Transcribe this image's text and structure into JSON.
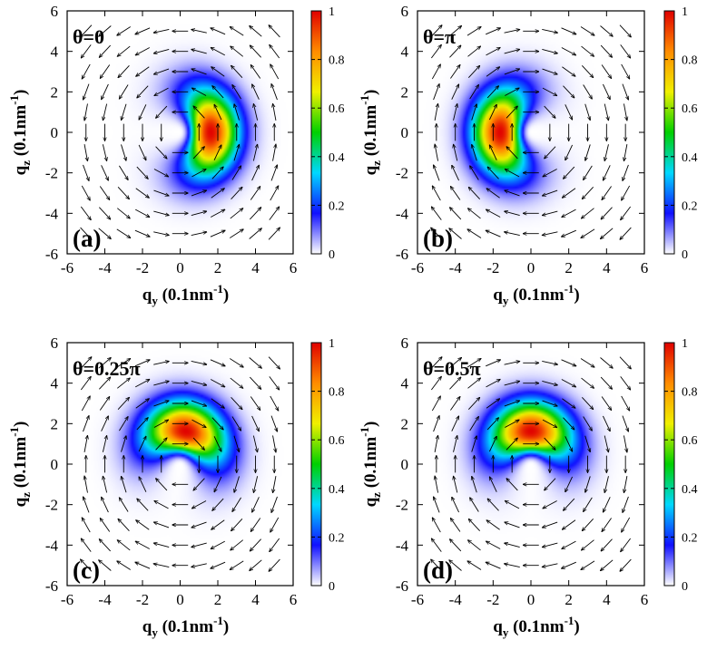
{
  "figure": {
    "chart_data": [
      {
        "type": "heatmap",
        "panel_label": "(a)",
        "theta_label": "θ=0",
        "ylabel": "q_z (0.1nm^-1)",
        "xlabel": "q_y (0.1nm^-1)",
        "xlim": [
          -6,
          6
        ],
        "ylim": [
          -6,
          6
        ],
        "xticks": [
          -6,
          -4,
          -2,
          0,
          2,
          4,
          6
        ],
        "yticks": [
          -6,
          -4,
          -2,
          0,
          2,
          4,
          6
        ],
        "colorbar": {
          "range": [
            0,
            1
          ],
          "ticks": [
            0,
            0.2,
            0.4,
            0.6,
            0.8,
            1
          ]
        },
        "intensity": {
          "peak_at": [
            1.6,
            0.0
          ],
          "shape": "crescent",
          "opens_toward": [
            -1,
            0
          ],
          "max": 1
        },
        "vector_field": {
          "circulation": "counterclockwise",
          "arrow_grid_spacing": 1
        }
      },
      {
        "type": "heatmap",
        "panel_label": "(b)",
        "theta_label": "θ=π",
        "ylabel": "q_z (0.1nm^-1)",
        "xlabel": "q_y (0.1nm^-1)",
        "xlim": [
          -6,
          6
        ],
        "ylim": [
          -6,
          6
        ],
        "xticks": [
          -6,
          -4,
          -2,
          0,
          2,
          4,
          6
        ],
        "yticks": [
          -6,
          -4,
          -2,
          0,
          2,
          4,
          6
        ],
        "colorbar": {
          "range": [
            0,
            1
          ],
          "ticks": [
            0,
            0.2,
            0.4,
            0.6,
            0.8,
            1
          ]
        },
        "intensity": {
          "peak_at": [
            -1.6,
            0.0
          ],
          "shape": "crescent",
          "opens_toward": [
            1,
            0
          ],
          "max": 1
        },
        "vector_field": {
          "circulation": "clockwise",
          "arrow_grid_spacing": 1
        }
      },
      {
        "type": "heatmap",
        "panel_label": "(c)",
        "theta_label": "θ=0.25π",
        "ylabel": "q_z (0.1nm^-1)",
        "xlabel": "q_y (0.1nm^-1)",
        "xlim": [
          -6,
          6
        ],
        "ylim": [
          -6,
          6
        ],
        "xticks": [
          -6,
          -4,
          -2,
          0,
          2,
          4,
          6
        ],
        "yticks": [
          -6,
          -4,
          -2,
          0,
          2,
          4,
          6
        ],
        "colorbar": {
          "range": [
            0,
            1
          ],
          "ticks": [
            0,
            0.2,
            0.4,
            0.6,
            0.8,
            1
          ]
        },
        "intensity": {
          "peak_at": [
            0.3,
            1.6
          ],
          "shape": "crescent",
          "opens_toward": [
            0,
            -1
          ],
          "max": 1
        },
        "vector_field": {
          "circulation": "clockwise",
          "arrow_grid_spacing": 1
        }
      },
      {
        "type": "heatmap",
        "panel_label": "(d)",
        "theta_label": "θ=0.5π",
        "ylabel": "q_z (0.1nm^-1)",
        "xlabel": "q_y (0.1nm^-1)",
        "xlim": [
          -6,
          6
        ],
        "ylim": [
          -6,
          6
        ],
        "xticks": [
          -6,
          -4,
          -2,
          0,
          2,
          4,
          6
        ],
        "yticks": [
          -6,
          -4,
          -2,
          0,
          2,
          4,
          6
        ],
        "colorbar": {
          "range": [
            0,
            1
          ],
          "ticks": [
            0,
            0.2,
            0.4,
            0.6,
            0.8,
            1
          ]
        },
        "intensity": {
          "peak_at": [
            0.0,
            1.6
          ],
          "shape": "crescent",
          "opens_toward": [
            0,
            -1
          ],
          "max": 1
        },
        "vector_field": {
          "circulation": "clockwise",
          "arrow_grid_spacing": 1
        }
      }
    ]
  },
  "colors": {
    "colormap": [
      "#ffffff",
      "#1010ff",
      "#00d8ff",
      "#00d000",
      "#f0f000",
      "#ff8c00",
      "#e00000"
    ],
    "arrow": "#000000"
  }
}
